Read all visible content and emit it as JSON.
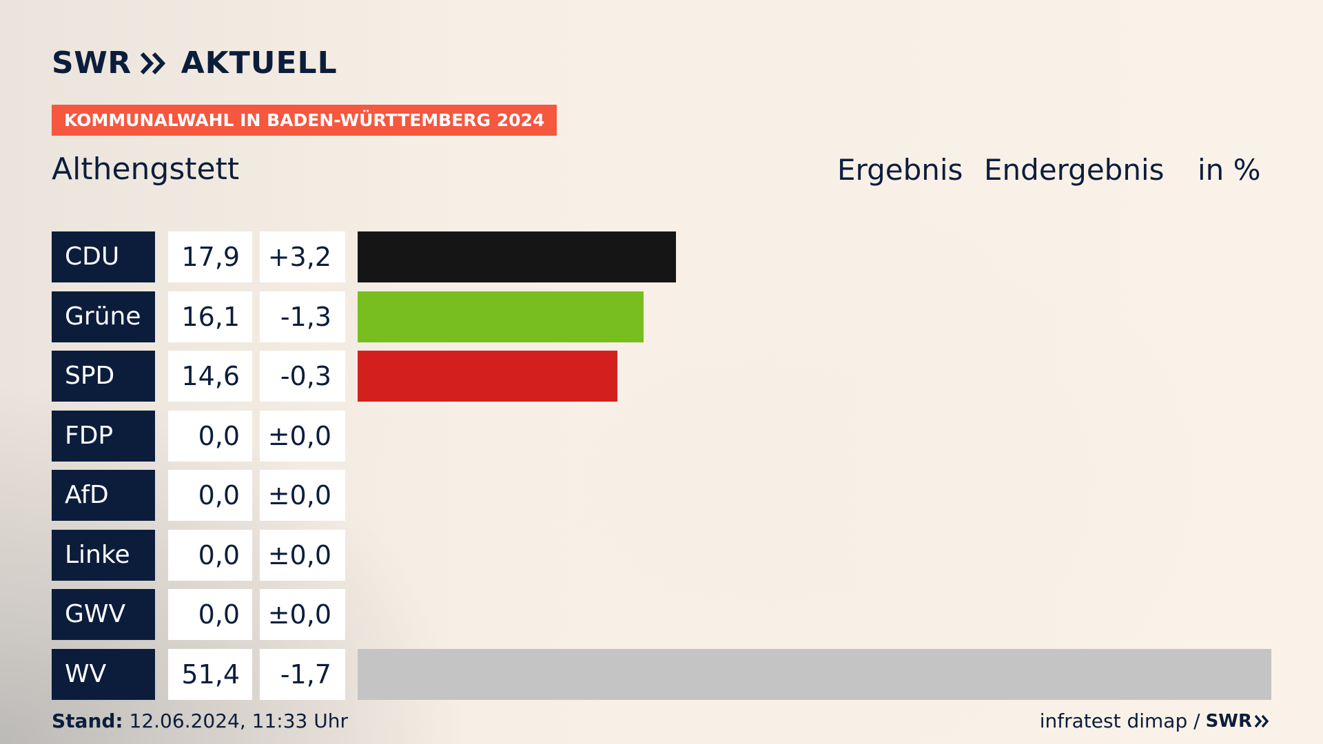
{
  "header": {
    "logo_brand": "SWR",
    "logo_title": "AKTUELL",
    "banner": "KOMMUNALWAHL IN BADEN-WÜRTTEMBERG 2024",
    "place": "Althengstett",
    "col_ergebnis": "Ergebnis",
    "col_status": "Endergebnis",
    "col_unit": "in %"
  },
  "colors": {
    "navy": "#0c1d3c",
    "banner": "#f5573f",
    "CDU": "#151515",
    "Grüne": "#78be1e",
    "SPD": "#d41f1f",
    "WV": "#c4c4c4"
  },
  "chart_data": {
    "type": "bar",
    "orientation": "horizontal",
    "categories": [
      "CDU",
      "Grüne",
      "SPD",
      "FDP",
      "AfD",
      "Linke",
      "GWV",
      "WV"
    ],
    "values": [
      17.9,
      16.1,
      14.6,
      0.0,
      0.0,
      0.0,
      0.0,
      51.4
    ],
    "values_label": [
      "17,9",
      "16,1",
      "14,6",
      "0,0",
      "0,0",
      "0,0",
      "0,0",
      "51,4"
    ],
    "diffs": [
      3.2,
      -1.3,
      -0.3,
      0.0,
      0.0,
      0.0,
      0.0,
      -1.7
    ],
    "diffs_label": [
      "+3,2",
      "-1,3",
      "-0,3",
      "±0,0",
      "±0,0",
      "±0,0",
      "±0,0",
      "-1,7"
    ],
    "bar_colors": [
      "#151515",
      "#78be1e",
      "#d41f1f",
      "#999999",
      "#999999",
      "#999999",
      "#999999",
      "#c4c4c4"
    ],
    "xlim": [
      0,
      51.4
    ],
    "unit": "in %"
  },
  "footer": {
    "stand_label": "Stand:",
    "stand_value": "12.06.2024, 11:33 Uhr",
    "source": "infratest dimap /",
    "brand": "SWR"
  }
}
